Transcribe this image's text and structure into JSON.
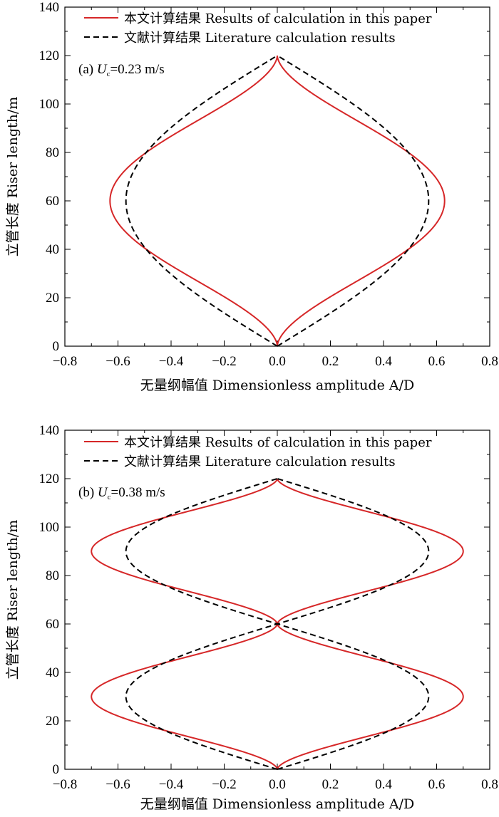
{
  "colors": {
    "calc": "#d62728",
    "lit": "#000000"
  },
  "chart_data": [
    {
      "type": "line",
      "panel": "(a)",
      "annotation": {
        "prefix": "(a) ",
        "var": "U",
        "sub": "c",
        "value": "=0.23 m/s"
      },
      "xlabel": "无量纲幅值 Dimensionless amplitude A/D",
      "ylabel": "立管长度 Riser length/m",
      "xlim": [
        -0.8,
        0.8
      ],
      "ylim": [
        0,
        140
      ],
      "xticks": [
        "−0.8",
        "−0.6",
        "−0.4",
        "−0.2",
        "0.0",
        "0.2",
        "0.4",
        "0.6",
        "0.8"
      ],
      "yticks": [
        "0",
        "20",
        "40",
        "60",
        "80",
        "100",
        "120",
        "140"
      ],
      "legend_position": "top-left",
      "series": [
        {
          "name": "本文计算结果 Results of calculation in this paper",
          "style": "solid",
          "color": "#d62728",
          "amplitude": 0.63,
          "half_waves": 1,
          "shape": "calc"
        },
        {
          "name": "文献计算结果 Literature calculation results",
          "style": "dashed",
          "color": "#000000",
          "amplitude": 0.57,
          "half_waves": 1,
          "shape": "sine"
        }
      ]
    },
    {
      "type": "line",
      "panel": "(b)",
      "annotation": {
        "prefix": "(b) ",
        "var": "U",
        "sub": "c",
        "value": "=0.38 m/s"
      },
      "xlabel": "无量纲幅值 Dimensionless amplitude A/D",
      "ylabel": "立管长度 Riser length/m",
      "xlim": [
        -0.8,
        0.8
      ],
      "ylim": [
        0,
        140
      ],
      "xticks": [
        "−0.8",
        "−0.6",
        "−0.4",
        "−0.2",
        "0.0",
        "0.2",
        "0.4",
        "0.6",
        "0.8"
      ],
      "yticks": [
        "0",
        "20",
        "40",
        "60",
        "80",
        "100",
        "120",
        "140"
      ],
      "legend_position": "top-left",
      "series": [
        {
          "name": "本文计算结果 Results of calculation in this paper",
          "style": "solid",
          "color": "#d62728",
          "amplitude": 0.7,
          "half_waves": 2,
          "shape": "calc"
        },
        {
          "name": "文献计算结果 Literature calculation results",
          "style": "dashed",
          "color": "#000000",
          "amplitude": 0.57,
          "half_waves": 2,
          "shape": "sine"
        }
      ]
    }
  ]
}
